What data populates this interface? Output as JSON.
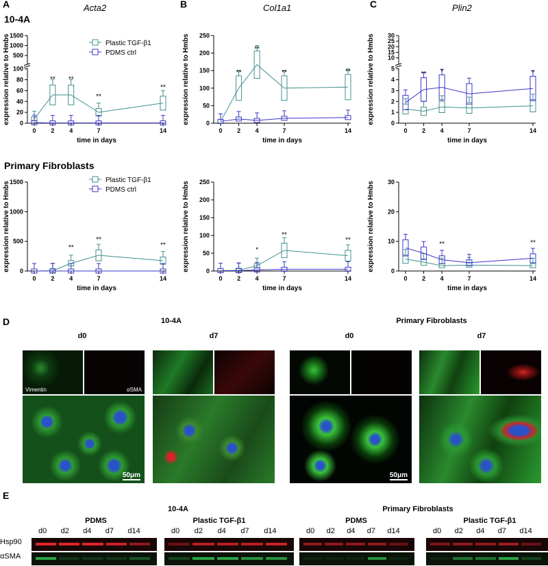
{
  "panels": {
    "A": "A",
    "B": "B",
    "C": "C",
    "D": "D",
    "E": "E"
  },
  "row_titles": {
    "top": "10-4A",
    "bottom": "Primary Fibroblasts"
  },
  "legend": {
    "plastic": "Plastic TGF-β1",
    "pdms": "PDMS ctrl"
  },
  "colors": {
    "plastic": "#3f8f8c",
    "pdms": "#3a35c8",
    "green": "#2fb34a",
    "red": "#e0242b",
    "blue": "#2940c8"
  },
  "chart_data": [
    {
      "id": "A-top",
      "type": "line",
      "title": "Acta2",
      "xlabel": "time in days",
      "ylabel": "expression relative to Hmbs",
      "x": [
        0,
        2,
        4,
        7,
        14
      ],
      "xlim": [
        0,
        14
      ],
      "broken_axis": true,
      "yticks_lower": [
        "0",
        "20",
        "40",
        "60",
        "80",
        "100"
      ],
      "yticks_upper": [
        "500",
        "1000",
        "1500"
      ],
      "series": [
        {
          "name": "Plastic TGF-β1",
          "values": [
            8,
            52,
            52,
            20,
            37
          ]
        },
        {
          "name": "PDMS ctrl",
          "values": [
            1,
            0.5,
            0.5,
            0.5,
            0.5
          ]
        }
      ],
      "boxes": {
        "Plastic TGF-β1": [
          [
            4,
            8,
            12,
            3,
            14
          ],
          [
            40,
            48,
            65,
            33,
            87
          ],
          [
            15,
            50,
            65,
            5,
            85
          ],
          [
            10,
            20,
            38,
            5,
            55
          ],
          [
            20,
            30,
            48,
            10,
            55
          ]
        ]
      },
      "significance": [
        "",
        "**",
        "**",
        "**",
        "**"
      ]
    },
    {
      "id": "B-top",
      "type": "line",
      "title": "Col1a1",
      "xlabel": "time in days",
      "ylabel": "expression relative to Hmbs",
      "x": [
        0,
        2,
        4,
        7,
        14
      ],
      "ylim": [
        0,
        250
      ],
      "yticks": [
        "0",
        "50",
        "100",
        "150",
        "200",
        "250"
      ],
      "series": [
        {
          "name": "Plastic TGF-β1",
          "values": [
            5,
            100,
            167,
            100,
            103
          ]
        },
        {
          "name": "PDMS ctrl",
          "values": [
            5,
            12,
            8,
            14,
            16
          ]
        }
      ],
      "significance": [
        "",
        "**",
        "**",
        "**",
        "**"
      ]
    },
    {
      "id": "C-top",
      "type": "line",
      "title": "Plin2",
      "xlabel": "time in days",
      "ylabel": "expression relative to Hmbs",
      "x": [
        0,
        2,
        4,
        7,
        14
      ],
      "broken_axis": true,
      "yticks_lower": [
        "0",
        "1",
        "2",
        "3",
        "4",
        "5"
      ],
      "yticks_upper": [
        "10",
        "15",
        "20",
        "25",
        "30"
      ],
      "series": [
        {
          "name": "Plastic TGF-β1",
          "values": [
            1.3,
            1.1,
            1.5,
            1.4,
            1.6
          ]
        },
        {
          "name": "PDMS ctrl",
          "values": [
            1.9,
            3.1,
            3.3,
            2.7,
            3.2
          ]
        }
      ],
      "significance": [
        "",
        "**",
        "*",
        "",
        "*"
      ]
    },
    {
      "id": "A-bottom",
      "type": "line",
      "xlabel": "time in days",
      "ylabel": "expression relative to Hmbs",
      "x": [
        0,
        2,
        4,
        7,
        14
      ],
      "ylim": [
        0,
        1500
      ],
      "yticks": [
        "0",
        "500",
        "1000",
        "1500"
      ],
      "series": [
        {
          "name": "Plastic TGF-β1",
          "values": [
            0,
            5,
            130,
            265,
            175
          ]
        },
        {
          "name": "PDMS ctrl",
          "values": [
            0,
            0,
            0,
            0,
            0
          ]
        }
      ],
      "significance": [
        "",
        "",
        "**",
        "**",
        "**"
      ]
    },
    {
      "id": "B-bottom",
      "type": "line",
      "xlabel": "time in days",
      "ylabel": "expression relative to Hmbs",
      "x": [
        0,
        2,
        4,
        7,
        14
      ],
      "ylim": [
        0,
        250
      ],
      "yticks": [
        "0",
        "50",
        "100",
        "150",
        "200",
        "250"
      ],
      "series": [
        {
          "name": "Plastic TGF-β1",
          "values": [
            1,
            2,
            15,
            58,
            43
          ]
        },
        {
          "name": "PDMS ctrl",
          "values": [
            1,
            1,
            3,
            5,
            5
          ]
        }
      ],
      "significance": [
        "",
        "",
        "*",
        "**",
        "**"
      ]
    },
    {
      "id": "C-bottom",
      "type": "line",
      "xlabel": "time in days",
      "ylabel": "expression relative to Hmbs",
      "x": [
        0,
        2,
        4,
        7,
        14
      ],
      "ylim": [
        0,
        30
      ],
      "yticks": [
        "0",
        "10",
        "20",
        "30"
      ],
      "series": [
        {
          "name": "Plastic TGF-β1",
          "values": [
            4,
            3,
            1.8,
            2,
            1.8
          ]
        },
        {
          "name": "PDMS ctrl",
          "values": [
            7.8,
            6,
            3.8,
            2.8,
            4.3
          ]
        }
      ],
      "significance": [
        "",
        "",
        "**",
        "",
        "**"
      ]
    }
  ],
  "microscopy": {
    "group_left": "10-4A",
    "group_right": "Primary Fibroblasts",
    "d0": "d0",
    "d7": "d7",
    "vimentin": "Vimentin",
    "asma": "αSMA",
    "scale": "50μm"
  },
  "western": {
    "group_left": "10-4A",
    "group_right": "Primary Fibroblasts",
    "pdms": "PDMS",
    "plastic": "Plastic TGF-β1",
    "lanes": [
      "d0",
      "d2",
      "d4",
      "d7",
      "d14"
    ],
    "rows": [
      "Hsp90",
      "αSMA"
    ]
  }
}
